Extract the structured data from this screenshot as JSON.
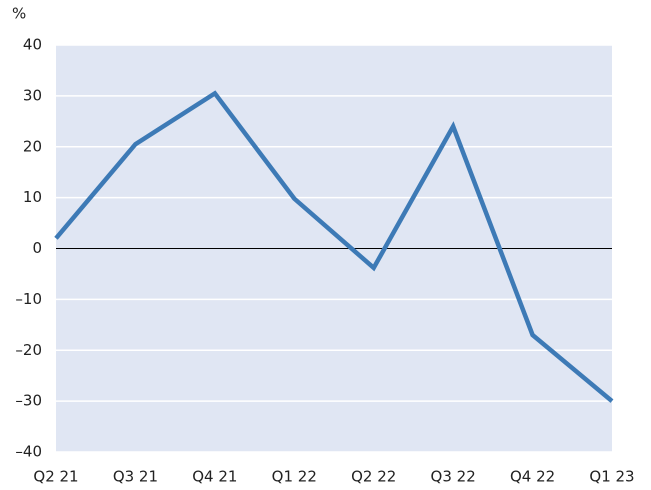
{
  "chart_data": {
    "type": "line",
    "y_label": "%",
    "categories": [
      "Q2 21",
      "Q3 21",
      "Q4 21",
      "Q1 22",
      "Q2 22",
      "Q3 22",
      "Q4 22",
      "Q1 23"
    ],
    "values": [
      2,
      20.5,
      30.5,
      9.8,
      -3.8,
      24,
      -17,
      -30
    ],
    "color": "#3d7ab6",
    "ylim": [
      -40,
      40
    ],
    "yticks": [
      {
        "value": -40,
        "label": "–40"
      },
      {
        "value": -30,
        "label": "–30"
      },
      {
        "value": -20,
        "label": "–20"
      },
      {
        "value": -10,
        "label": "–10"
      },
      0,
      10,
      20,
      30,
      40
    ],
    "grid": true
  }
}
